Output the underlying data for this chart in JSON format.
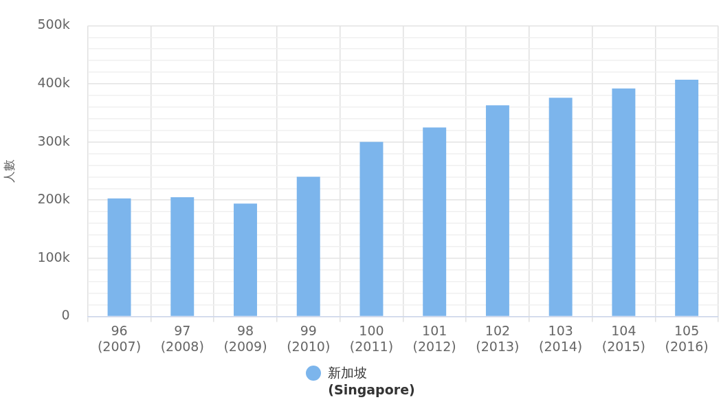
{
  "chart_data": {
    "type": "bar",
    "ylabel": "人數",
    "categories": [
      "96\n(2007)",
      "97\n(2008)",
      "98\n(2009)",
      "99\n(2010)",
      "100\n(2011)",
      "101\n(2012)",
      "102\n(2013)",
      "103\n(2014)",
      "104\n(2015)",
      "105\n(2016)"
    ],
    "series": [
      {
        "name": "新加坡\n(Singapore)",
        "color": "#7cb5ec",
        "values": [
          203000,
          205000,
          194000,
          240000,
          300000,
          325000,
          363000,
          376000,
          392000,
          407000
        ]
      }
    ],
    "ylim": [
      0,
      500000
    ],
    "yticks": [
      {
        "value": 0,
        "label": "0"
      },
      {
        "value": 20000,
        "label": null
      },
      {
        "value": 40000,
        "label": null
      },
      {
        "value": 60000,
        "label": null
      },
      {
        "value": 80000,
        "label": null
      },
      {
        "value": 100000,
        "label": "100k"
      },
      {
        "value": 120000,
        "label": null
      },
      {
        "value": 140000,
        "label": null
      },
      {
        "value": 160000,
        "label": null
      },
      {
        "value": 180000,
        "label": null
      },
      {
        "value": 200000,
        "label": "200k"
      },
      {
        "value": 220000,
        "label": null
      },
      {
        "value": 240000,
        "label": null
      },
      {
        "value": 260000,
        "label": null
      },
      {
        "value": 280000,
        "label": null
      },
      {
        "value": 300000,
        "label": "300k"
      },
      {
        "value": 320000,
        "label": null
      },
      {
        "value": 340000,
        "label": null
      },
      {
        "value": 360000,
        "label": null
      },
      {
        "value": 380000,
        "label": null
      },
      {
        "value": 400000,
        "label": "400k"
      },
      {
        "value": 420000,
        "label": null
      },
      {
        "value": 440000,
        "label": null
      },
      {
        "value": 460000,
        "label": null
      },
      {
        "value": 480000,
        "label": null
      },
      {
        "value": 500000,
        "label": "500k"
      }
    ],
    "grid": true,
    "legend": "bottom"
  }
}
